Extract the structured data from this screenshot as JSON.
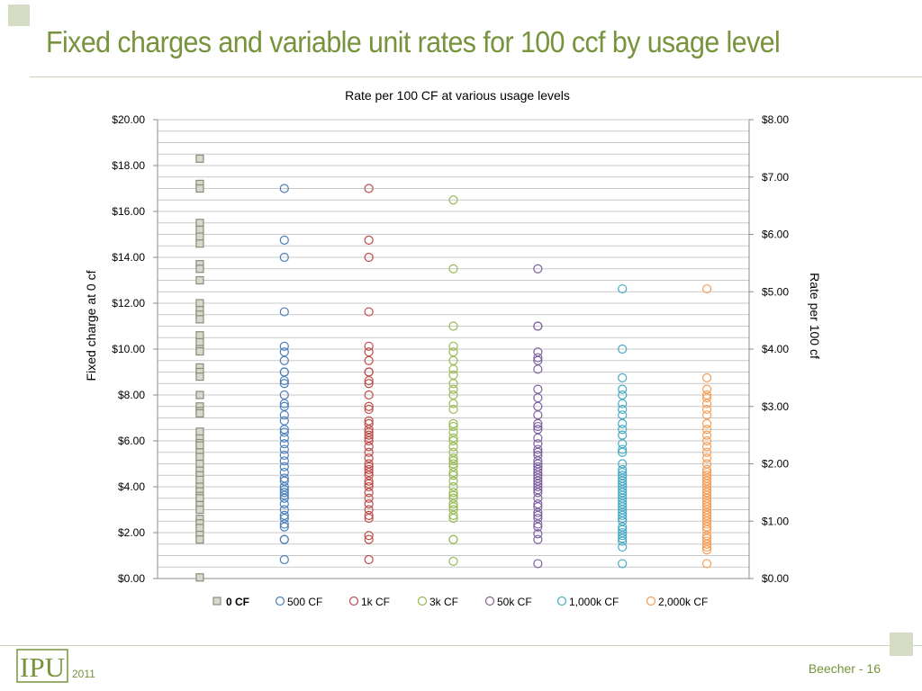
{
  "slide": {
    "title": "Fixed charges and variable unit rates for 100 ccf by usage level",
    "footer_year": "2011",
    "logo_text": "IPU",
    "slide_number": "Beecher - 16"
  },
  "colors": {
    "title_green": "#77933c",
    "accent_square": "#d5dcc4",
    "rule": "#c9d2b4"
  },
  "chart_data": {
    "type": "scatter",
    "title": "Rate per 100 CF at various usage levels",
    "ylabel_left": "Fixed charge at 0 cf",
    "ylabel_right": "Rate per 100 cf",
    "ylim_left": [
      0,
      20
    ],
    "ylim_right": [
      0,
      8
    ],
    "yticks_left": [
      "$0.00",
      "$2.00",
      "$4.00",
      "$6.00",
      "$8.00",
      "$10.00",
      "$12.00",
      "$14.00",
      "$16.00",
      "$18.00",
      "$20.00"
    ],
    "yticks_right": [
      "$0.00",
      "$1.00",
      "$2.00",
      "$3.00",
      "$4.00",
      "$5.00",
      "$6.00",
      "$7.00",
      "$8.00"
    ],
    "grid": true,
    "legend_position": "bottom",
    "categories": [
      "0 CF",
      "500 CF",
      "1k CF",
      "3k CF",
      "50k CF",
      "1,000k CF",
      "2,000k CF"
    ],
    "series": [
      {
        "name": "0 CF",
        "axis": "left",
        "marker": "square",
        "color": "#8c8c7c",
        "fill": "#d8d8cc",
        "values": [
          18.3,
          17.2,
          17.0,
          15.5,
          15.2,
          14.9,
          14.6,
          13.7,
          13.5,
          13.0,
          12.0,
          11.7,
          11.5,
          11.3,
          10.6,
          10.3,
          10.0,
          9.9,
          9.2,
          9.0,
          8.8,
          8.0,
          7.5,
          7.3,
          7.2,
          6.4,
          6.1,
          5.9,
          5.8,
          5.5,
          5.3,
          5.0,
          4.7,
          4.5,
          4.3,
          4.0,
          3.8,
          3.6,
          3.5,
          3.2,
          3.0,
          2.6,
          2.4,
          2.2,
          1.9,
          1.7,
          0.05
        ]
      },
      {
        "name": "500 CF",
        "axis": "right",
        "marker": "circle",
        "color": "#4a7ebb",
        "values": [
          6.8,
          5.9,
          5.6,
          4.65,
          4.05,
          3.95,
          3.8,
          3.6,
          3.6,
          3.45,
          3.4,
          3.2,
          3.05,
          3.0,
          2.85,
          2.75,
          2.6,
          2.55,
          2.45,
          2.35,
          2.25,
          2.15,
          2.05,
          1.95,
          1.85,
          1.75,
          1.7,
          1.6,
          1.55,
          1.5,
          1.45,
          1.4,
          1.3,
          1.2,
          1.1,
          1.05,
          0.95,
          0.9,
          0.68,
          0.68,
          0.33
        ]
      },
      {
        "name": "1k CF",
        "axis": "right",
        "marker": "circle",
        "color": "#be4b48",
        "values": [
          6.8,
          5.9,
          5.6,
          4.65,
          4.05,
          3.95,
          3.8,
          3.6,
          3.6,
          3.45,
          3.4,
          3.2,
          3.0,
          2.95,
          2.75,
          2.7,
          2.6,
          2.55,
          2.5,
          2.45,
          2.4,
          2.3,
          2.2,
          2.1,
          2.0,
          1.95,
          1.9,
          1.85,
          1.8,
          1.7,
          1.65,
          1.6,
          1.5,
          1.4,
          1.3,
          1.2,
          1.1,
          1.05,
          0.75,
          0.68,
          0.33
        ]
      },
      {
        "name": "3k CF",
        "axis": "right",
        "marker": "circle",
        "color": "#98b954",
        "values": [
          6.6,
          5.4,
          4.4,
          4.05,
          3.95,
          3.8,
          3.65,
          3.55,
          3.4,
          3.3,
          3.2,
          3.05,
          2.95,
          2.7,
          2.65,
          2.55,
          2.45,
          2.4,
          2.3,
          2.2,
          2.1,
          2.05,
          2.0,
          1.95,
          1.85,
          1.8,
          1.7,
          1.6,
          1.5,
          1.45,
          1.4,
          1.3,
          1.25,
          1.2,
          1.1,
          1.05,
          0.68,
          0.68,
          0.3
        ]
      },
      {
        "name": "50k CF",
        "axis": "right",
        "marker": "circle",
        "color": "#7d60a0",
        "values": [
          5.4,
          4.4,
          4.4,
          3.95,
          3.85,
          3.8,
          3.65,
          3.3,
          3.15,
          3.0,
          2.85,
          2.7,
          2.65,
          2.6,
          2.45,
          2.35,
          2.25,
          2.2,
          2.15,
          2.05,
          2.0,
          1.95,
          1.9,
          1.85,
          1.8,
          1.75,
          1.7,
          1.65,
          1.6,
          1.55,
          1.5,
          1.4,
          1.3,
          1.25,
          1.15,
          1.1,
          1.05,
          0.95,
          0.9,
          0.78,
          0.68,
          0.26
        ]
      },
      {
        "name": "1,000k CF",
        "axis": "right",
        "marker": "circle",
        "color": "#46aac5",
        "values": [
          5.05,
          4.0,
          3.5,
          3.3,
          3.2,
          3.05,
          2.95,
          2.85,
          2.7,
          2.6,
          2.5,
          2.35,
          2.25,
          2.2,
          2.0,
          1.9,
          1.85,
          1.8,
          1.75,
          1.7,
          1.65,
          1.6,
          1.55,
          1.5,
          1.45,
          1.4,
          1.35,
          1.3,
          1.25,
          1.2,
          1.15,
          1.1,
          1.05,
          1.0,
          0.9,
          0.85,
          0.8,
          0.75,
          0.7,
          0.65,
          0.55,
          0.26
        ]
      },
      {
        "name": "2,000k CF",
        "axis": "right",
        "marker": "circle",
        "color": "#f59d56",
        "values": [
          5.05,
          3.5,
          3.3,
          3.2,
          3.15,
          3.05,
          2.95,
          2.85,
          2.7,
          2.6,
          2.5,
          2.4,
          2.3,
          2.2,
          2.1,
          2.0,
          1.9,
          1.85,
          1.8,
          1.75,
          1.7,
          1.65,
          1.6,
          1.55,
          1.5,
          1.45,
          1.4,
          1.35,
          1.3,
          1.25,
          1.2,
          1.15,
          1.1,
          1.05,
          1.0,
          0.95,
          0.9,
          0.85,
          0.75,
          0.7,
          0.65,
          0.6,
          0.55,
          0.5,
          0.26
        ]
      }
    ]
  }
}
